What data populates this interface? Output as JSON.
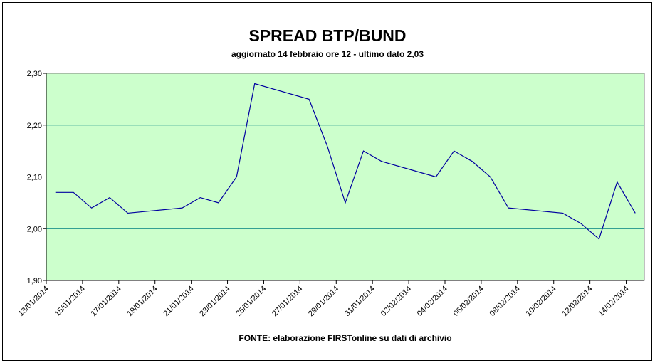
{
  "chart_data": {
    "type": "line",
    "title": "SPREAD BTP/BUND",
    "subtitle": "aggiornato 14 febbraio ore 12 - ultimo dato 2,03",
    "x_label": "FONTE: elaborazione FIRSTonline su dati di archivio",
    "x": [
      "2014-01-13",
      "2014-01-14",
      "2014-01-15",
      "2014-01-16",
      "2014-01-17",
      "2014-01-20",
      "2014-01-21",
      "2014-01-22",
      "2014-01-23",
      "2014-01-24",
      "2014-01-27",
      "2014-01-28",
      "2014-01-29",
      "2014-01-30",
      "2014-01-31",
      "2014-02-03",
      "2014-02-04",
      "2014-02-05",
      "2014-02-06",
      "2014-02-07",
      "2014-02-10",
      "2014-02-11",
      "2014-02-12",
      "2014-02-13",
      "2014-02-14"
    ],
    "series": [
      {
        "name": "Spread",
        "color": "#0000a0",
        "values": [
          2.07,
          2.07,
          2.04,
          2.06,
          2.03,
          2.04,
          2.06,
          2.05,
          2.1,
          2.28,
          2.25,
          2.16,
          2.05,
          2.15,
          2.13,
          2.1,
          2.15,
          2.13,
          2.1,
          2.04,
          2.03,
          2.01,
          1.98,
          2.09,
          2.03
        ]
      }
    ],
    "xlim": [
      "2014-01-13",
      "2014-02-15"
    ],
    "xticks": [
      {
        "value": "2014-01-13",
        "label": "13/01/2014"
      },
      {
        "value": "2014-01-15",
        "label": "15/01/2014"
      },
      {
        "value": "2014-01-17",
        "label": "17/01/2014"
      },
      {
        "value": "2014-01-19",
        "label": "19/01/2014"
      },
      {
        "value": "2014-01-21",
        "label": "21/01/2014"
      },
      {
        "value": "2014-01-23",
        "label": "23/01/2014"
      },
      {
        "value": "2014-01-25",
        "label": "25/01/2014"
      },
      {
        "value": "2014-01-27",
        "label": "27/01/2014"
      },
      {
        "value": "2014-01-29",
        "label": "29/01/2014"
      },
      {
        "value": "2014-01-31",
        "label": "31/01/2014"
      },
      {
        "value": "2014-02-02",
        "label": "02/02/2014"
      },
      {
        "value": "2014-02-04",
        "label": "04/02/2014"
      },
      {
        "value": "2014-02-06",
        "label": "06/02/2014"
      },
      {
        "value": "2014-02-08",
        "label": "08/02/2014"
      },
      {
        "value": "2014-02-10",
        "label": "10/02/2014"
      },
      {
        "value": "2014-02-12",
        "label": "12/02/2014"
      },
      {
        "value": "2014-02-14",
        "label": "14/02/2014"
      }
    ],
    "ylim": [
      1.9,
      2.3
    ],
    "yticks": [
      {
        "value": 1.9,
        "label": "1,90"
      },
      {
        "value": 2.0,
        "label": "2,00"
      },
      {
        "value": 2.1,
        "label": "2,10"
      },
      {
        "value": 2.2,
        "label": "2,20"
      },
      {
        "value": 2.3,
        "label": "2,30"
      }
    ],
    "grid": true,
    "grid_color": "#008080",
    "plot_background": "#ccffcc"
  }
}
